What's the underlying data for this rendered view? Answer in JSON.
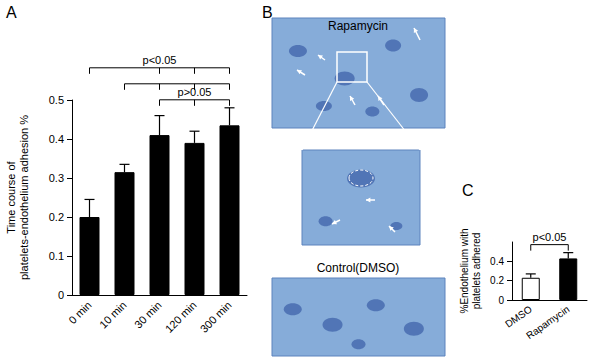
{
  "chart_data": [
    {
      "panel": "A",
      "type": "bar",
      "y_label": "Time course of\nplatelets-endothelium adhesion %",
      "categories": [
        "0 min",
        "10 min",
        "30 min",
        "120 min",
        "300 min"
      ],
      "values": [
        0.2,
        0.315,
        0.41,
        0.39,
        0.435
      ],
      "errors": [
        0.045,
        0.02,
        0.05,
        0.03,
        0.045
      ],
      "color": "#000000",
      "ylim": [
        0,
        0.5
      ],
      "yticks": [
        0,
        0.1,
        0.2,
        0.3,
        0.4,
        0.5
      ],
      "grid": false,
      "brackets": [
        {
          "categories": [
            "30 min",
            "120 min",
            "300 min"
          ],
          "label": "p>0.05"
        },
        {
          "categories": [
            "10 min",
            "30 min",
            "120 min",
            "300 min"
          ]
        },
        {
          "categories": [
            "0 min",
            "30 min",
            "120 min",
            "300 min"
          ],
          "label": "p<0.05"
        }
      ]
    },
    {
      "panel": "C",
      "type": "bar",
      "y_label": "%Endothelium with\nplatelets adhered",
      "categories": [
        "DMSO",
        "Rapamycin"
      ],
      "values": [
        0.23,
        0.43
      ],
      "errors": [
        0.04,
        0.06
      ],
      "colors": [
        "#ffffff",
        "#000000"
      ],
      "ylim": [
        0,
        0.6
      ],
      "yticks": [
        0,
        0.2,
        0.4
      ],
      "grid": false,
      "brackets": [
        {
          "categories": [
            "DMSO",
            "Rapamycin"
          ],
          "label": "p<0.05"
        }
      ]
    }
  ],
  "image_panel": {
    "panel": "B",
    "top_label": "Rapamycin",
    "bottom_label": "Control(DMSO)"
  }
}
